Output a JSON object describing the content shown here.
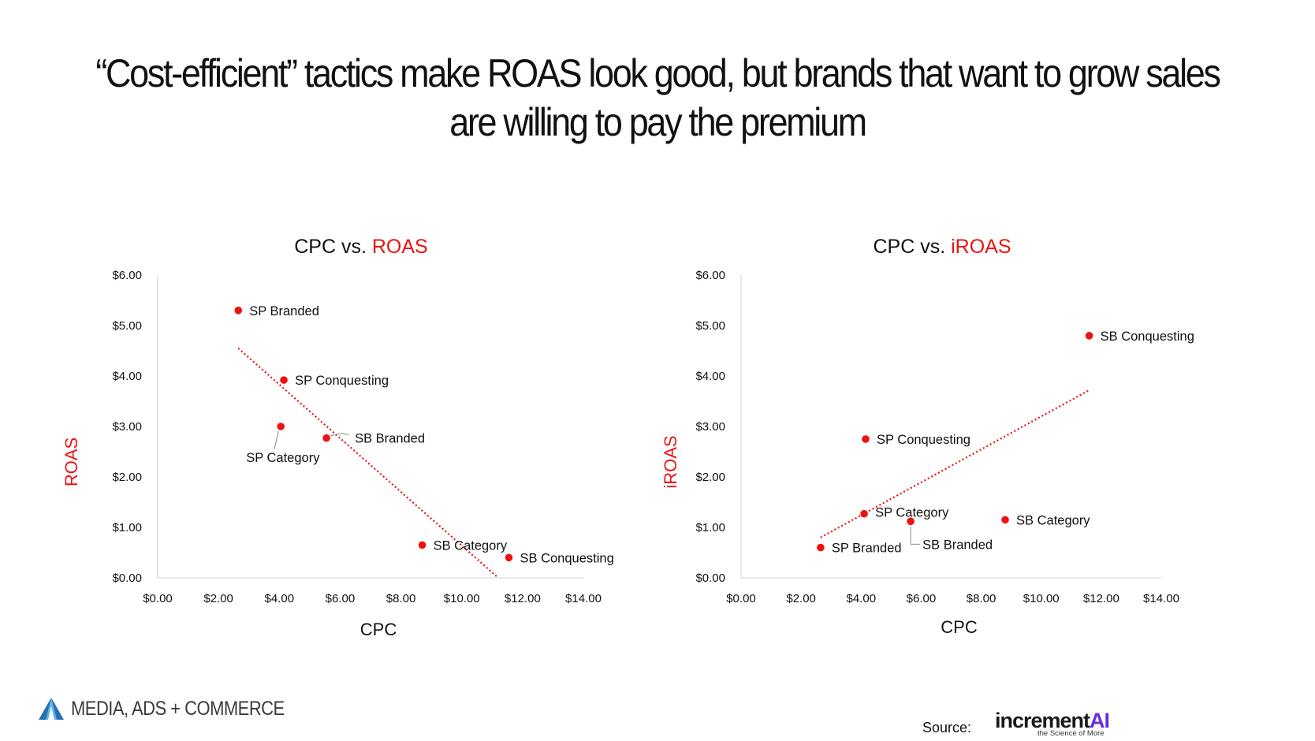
{
  "headline": {
    "line1": "“Cost-efficient” tactics make ROAS look good, but brands that want to grow sales",
    "line2": "are willing to pay the premium"
  },
  "colors": {
    "accent": "#ee1111",
    "text": "#111111",
    "axis": "#d9d9d9"
  },
  "chart_data": [
    {
      "type": "scatter",
      "title_prefix": "CPC vs. ",
      "title_highlight": "ROAS",
      "xlabel": "CPC",
      "ylabel": "ROAS",
      "xlim": [
        0,
        14
      ],
      "ylim": [
        0,
        6
      ],
      "x_ticks": [
        "$0.00",
        "$2.00",
        "$4.00",
        "$6.00",
        "$8.00",
        "$10.00",
        "$12.00",
        "$14.00"
      ],
      "y_ticks": [
        "$0.00",
        "$1.00",
        "$2.00",
        "$3.00",
        "$4.00",
        "$5.00",
        "$6.00"
      ],
      "points": [
        {
          "name": "SP Branded",
          "x": 2.65,
          "y": 5.3
        },
        {
          "name": "SP Conquesting",
          "x": 4.15,
          "y": 3.92
        },
        {
          "name": "SP Category",
          "x": 4.05,
          "y": 3.0
        },
        {
          "name": "SB Branded",
          "x": 5.55,
          "y": 2.77
        },
        {
          "name": "SB Category",
          "x": 8.7,
          "y": 0.65
        },
        {
          "name": "SB Conquesting",
          "x": 11.55,
          "y": 0.4
        }
      ],
      "trendline": {
        "x": [
          2.65,
          11.2
        ],
        "y": [
          4.55,
          0.0
        ]
      }
    },
    {
      "type": "scatter",
      "title_prefix": "CPC vs. ",
      "title_highlight": "iROAS",
      "xlabel": "CPC",
      "ylabel": "iROAS",
      "xlim": [
        0,
        14
      ],
      "ylim": [
        0,
        6
      ],
      "x_ticks": [
        "$0.00",
        "$2.00",
        "$4.00",
        "$6.00",
        "$8.00",
        "$10.00",
        "$12.00",
        "$14.00"
      ],
      "y_ticks": [
        "$0.00",
        "$1.00",
        "$2.00",
        "$3.00",
        "$4.00",
        "$5.00",
        "$6.00"
      ],
      "points": [
        {
          "name": "SB Conquesting",
          "x": 11.6,
          "y": 4.8
        },
        {
          "name": "SP Conquesting",
          "x": 4.15,
          "y": 2.75
        },
        {
          "name": "SP Category",
          "x": 4.1,
          "y": 1.27
        },
        {
          "name": "SB Category",
          "x": 8.8,
          "y": 1.15
        },
        {
          "name": "SB Branded",
          "x": 5.65,
          "y": 1.12
        },
        {
          "name": "SP Branded",
          "x": 2.65,
          "y": 0.6
        }
      ],
      "trendline": {
        "x": [
          2.65,
          11.6
        ],
        "y": [
          0.8,
          3.72
        ]
      }
    }
  ],
  "footer": {
    "logo_text": "MEDIA, ADS + COMMERCE",
    "source_label": "Source:",
    "brand_main": "increment",
    "brand_ai": "AI",
    "brand_tagline": "the Science of More"
  }
}
